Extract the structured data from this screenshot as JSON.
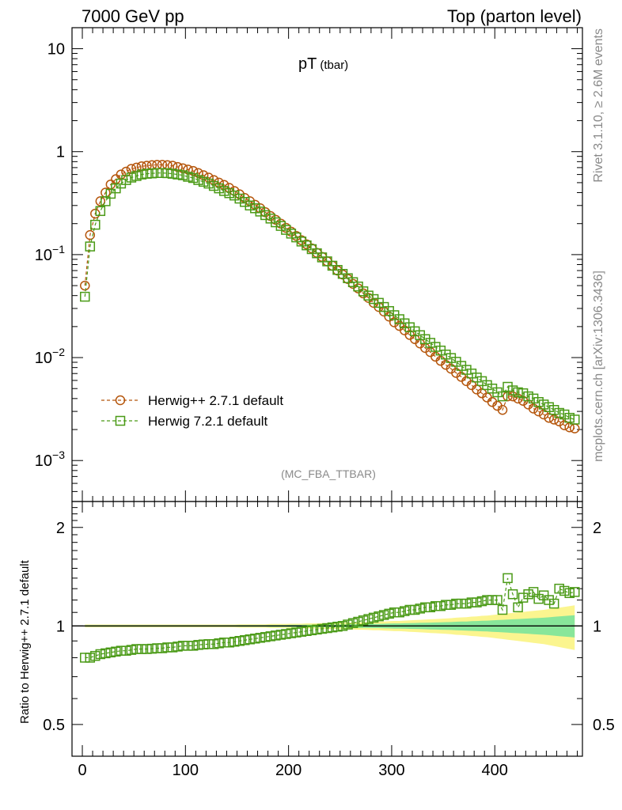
{
  "header": {
    "left": "7000 GeV pp",
    "right": "Top (parton level)"
  },
  "side_text": {
    "rivet": "Rivet 3.1.10, ≥ 2.6M events",
    "mcplots": "mcplots.cern.ch [arXiv:1306.3436]"
  },
  "chart_data": [
    {
      "type": "line",
      "title": "pT",
      "title_sub": "(tbar)",
      "watermark": "(MC_FBA_TTBAR)",
      "yscale": "log",
      "ylim": [
        0.0004,
        16
      ],
      "xlim": [
        -10,
        485
      ],
      "x_ticks": [
        0,
        100,
        200,
        300,
        400
      ],
      "y_ticks": [
        {
          "value": 10,
          "label": "10"
        },
        {
          "value": 1,
          "label": "1"
        },
        {
          "value": 0.1,
          "base": "10",
          "exp": "−1"
        },
        {
          "value": 0.01,
          "base": "10",
          "exp": "−2"
        },
        {
          "value": 0.001,
          "base": "10",
          "exp": "−3"
        }
      ],
      "legend": "bottom-left",
      "series": [
        {
          "name": "Herwig++ 2.7.1 default",
          "color": "#b5560c",
          "marker": "circle",
          "x": [
            2.5,
            7.5,
            12.5,
            17.5,
            22.5,
            27.5,
            32.5,
            37.5,
            42.5,
            47.5,
            52.5,
            57.5,
            62.5,
            67.5,
            72.5,
            77.5,
            82.5,
            87.5,
            92.5,
            97.5,
            102.5,
            107.5,
            112.5,
            117.5,
            122.5,
            127.5,
            132.5,
            137.5,
            142.5,
            147.5,
            152.5,
            157.5,
            162.5,
            167.5,
            172.5,
            177.5,
            182.5,
            187.5,
            192.5,
            197.5,
            202.5,
            207.5,
            212.5,
            217.5,
            222.5,
            227.5,
            232.5,
            237.5,
            242.5,
            247.5,
            252.5,
            257.5,
            262.5,
            267.5,
            272.5,
            277.5,
            282.5,
            287.5,
            292.5,
            297.5,
            302.5,
            307.5,
            312.5,
            317.5,
            322.5,
            327.5,
            332.5,
            337.5,
            342.5,
            347.5,
            352.5,
            357.5,
            362.5,
            367.5,
            372.5,
            377.5,
            382.5,
            387.5,
            392.5,
            397.5,
            402.5,
            407.5,
            412.5,
            417.5,
            422.5,
            427.5,
            432.5,
            437.5,
            442.5,
            447.5,
            452.5,
            457.5,
            462.5,
            467.5,
            472.5,
            477.5
          ],
          "y": [
            0.05,
            0.155,
            0.25,
            0.33,
            0.4,
            0.48,
            0.54,
            0.6,
            0.64,
            0.68,
            0.7,
            0.72,
            0.73,
            0.74,
            0.745,
            0.745,
            0.74,
            0.73,
            0.71,
            0.69,
            0.67,
            0.65,
            0.62,
            0.59,
            0.56,
            0.53,
            0.5,
            0.475,
            0.445,
            0.415,
            0.385,
            0.355,
            0.33,
            0.305,
            0.282,
            0.258,
            0.237,
            0.218,
            0.2,
            0.182,
            0.167,
            0.152,
            0.138,
            0.126,
            0.115,
            0.104,
            0.095,
            0.086,
            0.078,
            0.07,
            0.064,
            0.058,
            0.052,
            0.047,
            0.042,
            0.038,
            0.034,
            0.031,
            0.028,
            0.025,
            0.022,
            0.0203,
            0.0184,
            0.0166,
            0.0151,
            0.0137,
            0.0124,
            0.0113,
            0.0102,
            0.0093,
            0.0085,
            0.0078,
            0.0071,
            0.0065,
            0.0059,
            0.0054,
            0.0049,
            0.0045,
            0.0041,
            0.0037,
            0.0034,
            0.0031,
            0.0042,
            0.0042,
            0.004,
            0.0038,
            0.0035,
            0.0032,
            0.003,
            0.0028,
            0.0026,
            0.0025,
            0.0024,
            0.0022,
            0.0021,
            0.00205
          ]
        },
        {
          "name": "Herwig 7.2.1 default",
          "color": "#4a9a16",
          "marker": "square",
          "x": [
            2.5,
            7.5,
            12.5,
            17.5,
            22.5,
            27.5,
            32.5,
            37.5,
            42.5,
            47.5,
            52.5,
            57.5,
            62.5,
            67.5,
            72.5,
            77.5,
            82.5,
            87.5,
            92.5,
            97.5,
            102.5,
            107.5,
            112.5,
            117.5,
            122.5,
            127.5,
            132.5,
            137.5,
            142.5,
            147.5,
            152.5,
            157.5,
            162.5,
            167.5,
            172.5,
            177.5,
            182.5,
            187.5,
            192.5,
            197.5,
            202.5,
            207.5,
            212.5,
            217.5,
            222.5,
            227.5,
            232.5,
            237.5,
            242.5,
            247.5,
            252.5,
            257.5,
            262.5,
            267.5,
            272.5,
            277.5,
            282.5,
            287.5,
            292.5,
            297.5,
            302.5,
            307.5,
            312.5,
            317.5,
            322.5,
            327.5,
            332.5,
            337.5,
            342.5,
            347.5,
            352.5,
            357.5,
            362.5,
            367.5,
            372.5,
            377.5,
            382.5,
            387.5,
            392.5,
            397.5,
            402.5,
            407.5,
            412.5,
            417.5,
            422.5,
            427.5,
            432.5,
            437.5,
            442.5,
            447.5,
            452.5,
            457.5,
            462.5,
            467.5,
            472.5,
            477.5
          ],
          "y": [
            0.039,
            0.12,
            0.195,
            0.265,
            0.33,
            0.39,
            0.44,
            0.49,
            0.53,
            0.56,
            0.58,
            0.6,
            0.61,
            0.615,
            0.62,
            0.62,
            0.618,
            0.61,
            0.6,
            0.59,
            0.57,
            0.555,
            0.53,
            0.51,
            0.49,
            0.465,
            0.44,
            0.415,
            0.395,
            0.375,
            0.35,
            0.325,
            0.3,
            0.282,
            0.262,
            0.242,
            0.224,
            0.206,
            0.19,
            0.174,
            0.16,
            0.147,
            0.134,
            0.123,
            0.113,
            0.103,
            0.094,
            0.086,
            0.078,
            0.071,
            0.065,
            0.059,
            0.054,
            0.049,
            0.044,
            0.04,
            0.037,
            0.034,
            0.031,
            0.0283,
            0.0258,
            0.0236,
            0.0215,
            0.0197,
            0.018,
            0.0165,
            0.0151,
            0.0139,
            0.0127,
            0.0117,
            0.0107,
            0.0099,
            0.0091,
            0.0083,
            0.0076,
            0.007,
            0.0064,
            0.0059,
            0.0054,
            0.005,
            0.0046,
            0.0042,
            0.0052,
            0.0048,
            0.0046,
            0.0045,
            0.0042,
            0.004,
            0.0037,
            0.0035,
            0.0033,
            0.0031,
            0.0029,
            0.0028,
            0.0026,
            0.0025
          ]
        }
      ]
    },
    {
      "type": "line",
      "ylabel": "Ratio to Herwig++ 2.7.1 default",
      "yscale": "log",
      "ylim": [
        0.4,
        2.4
      ],
      "xlim": [
        -10,
        485
      ],
      "x_ticks": [
        0,
        100,
        200,
        300,
        400
      ],
      "y_ticks": [
        {
          "value": 0.5,
          "label": "0.5"
        },
        {
          "value": 1,
          "label": "1"
        },
        {
          "value": 2,
          "label": "2"
        }
      ],
      "reference": 1,
      "uncertainty_band_colors": {
        "outer": "#fbf58f",
        "inner": "#88e69a"
      },
      "series": [
        {
          "name": "Herwig 7.2.1 default",
          "color": "#4a9a16",
          "marker": "square",
          "x": [
            2.5,
            7.5,
            12.5,
            17.5,
            22.5,
            27.5,
            32.5,
            37.5,
            42.5,
            47.5,
            52.5,
            57.5,
            62.5,
            67.5,
            72.5,
            77.5,
            82.5,
            87.5,
            92.5,
            97.5,
            102.5,
            107.5,
            112.5,
            117.5,
            122.5,
            127.5,
            132.5,
            137.5,
            142.5,
            147.5,
            152.5,
            157.5,
            162.5,
            167.5,
            172.5,
            177.5,
            182.5,
            187.5,
            192.5,
            197.5,
            202.5,
            207.5,
            212.5,
            217.5,
            222.5,
            227.5,
            232.5,
            237.5,
            242.5,
            247.5,
            252.5,
            257.5,
            262.5,
            267.5,
            272.5,
            277.5,
            282.5,
            287.5,
            292.5,
            297.5,
            302.5,
            307.5,
            312.5,
            317.5,
            322.5,
            327.5,
            332.5,
            337.5,
            342.5,
            347.5,
            352.5,
            357.5,
            362.5,
            367.5,
            372.5,
            377.5,
            382.5,
            387.5,
            392.5,
            397.5,
            402.5,
            407.5,
            412.5,
            417.5,
            422.5,
            427.5,
            432.5,
            437.5,
            442.5,
            447.5,
            452.5,
            457.5,
            462.5,
            467.5,
            472.5,
            477.5
          ],
          "y": [
            0.8,
            0.8,
            0.81,
            0.82,
            0.825,
            0.83,
            0.835,
            0.84,
            0.84,
            0.845,
            0.85,
            0.85,
            0.85,
            0.852,
            0.855,
            0.855,
            0.86,
            0.86,
            0.865,
            0.87,
            0.87,
            0.87,
            0.875,
            0.878,
            0.88,
            0.88,
            0.885,
            0.89,
            0.89,
            0.895,
            0.9,
            0.905,
            0.91,
            0.915,
            0.92,
            0.925,
            0.93,
            0.935,
            0.94,
            0.945,
            0.95,
            0.955,
            0.96,
            0.965,
            0.97,
            0.975,
            0.98,
            0.985,
            0.99,
            0.995,
            1.0,
            1.01,
            1.02,
            1.03,
            1.04,
            1.05,
            1.06,
            1.07,
            1.08,
            1.09,
            1.1,
            1.1,
            1.11,
            1.12,
            1.12,
            1.13,
            1.14,
            1.14,
            1.15,
            1.15,
            1.16,
            1.16,
            1.17,
            1.17,
            1.17,
            1.18,
            1.18,
            1.19,
            1.2,
            1.2,
            1.2,
            1.12,
            1.4,
            1.25,
            1.14,
            1.22,
            1.25,
            1.27,
            1.21,
            1.24,
            1.2,
            1.17,
            1.3,
            1.28,
            1.26,
            1.27
          ],
          "err": [
            0.005,
            0.005,
            0.005,
            0.005,
            0.005,
            0.005,
            0.005,
            0.005,
            0.005,
            0.005,
            0.005,
            0.005,
            0.005,
            0.005,
            0.005,
            0.005,
            0.005,
            0.005,
            0.005,
            0.005,
            0.005,
            0.005,
            0.005,
            0.005,
            0.005,
            0.005,
            0.005,
            0.005,
            0.005,
            0.005,
            0.006,
            0.006,
            0.006,
            0.006,
            0.006,
            0.006,
            0.007,
            0.007,
            0.007,
            0.007,
            0.008,
            0.008,
            0.008,
            0.009,
            0.009,
            0.009,
            0.01,
            0.01,
            0.01,
            0.011,
            0.011,
            0.012,
            0.012,
            0.013,
            0.013,
            0.014,
            0.015,
            0.015,
            0.016,
            0.017,
            0.018,
            0.018,
            0.019,
            0.02,
            0.021,
            0.022,
            0.023,
            0.024,
            0.025,
            0.026,
            0.027,
            0.028,
            0.03,
            0.031,
            0.032,
            0.034,
            0.035,
            0.037,
            0.038,
            0.04,
            0.042,
            0.044,
            0.046,
            0.048,
            0.05,
            0.052,
            0.054,
            0.056,
            0.058,
            0.06,
            0.063,
            0.066,
            0.069,
            0.072,
            0.075,
            0.078
          ]
        }
      ]
    }
  ]
}
